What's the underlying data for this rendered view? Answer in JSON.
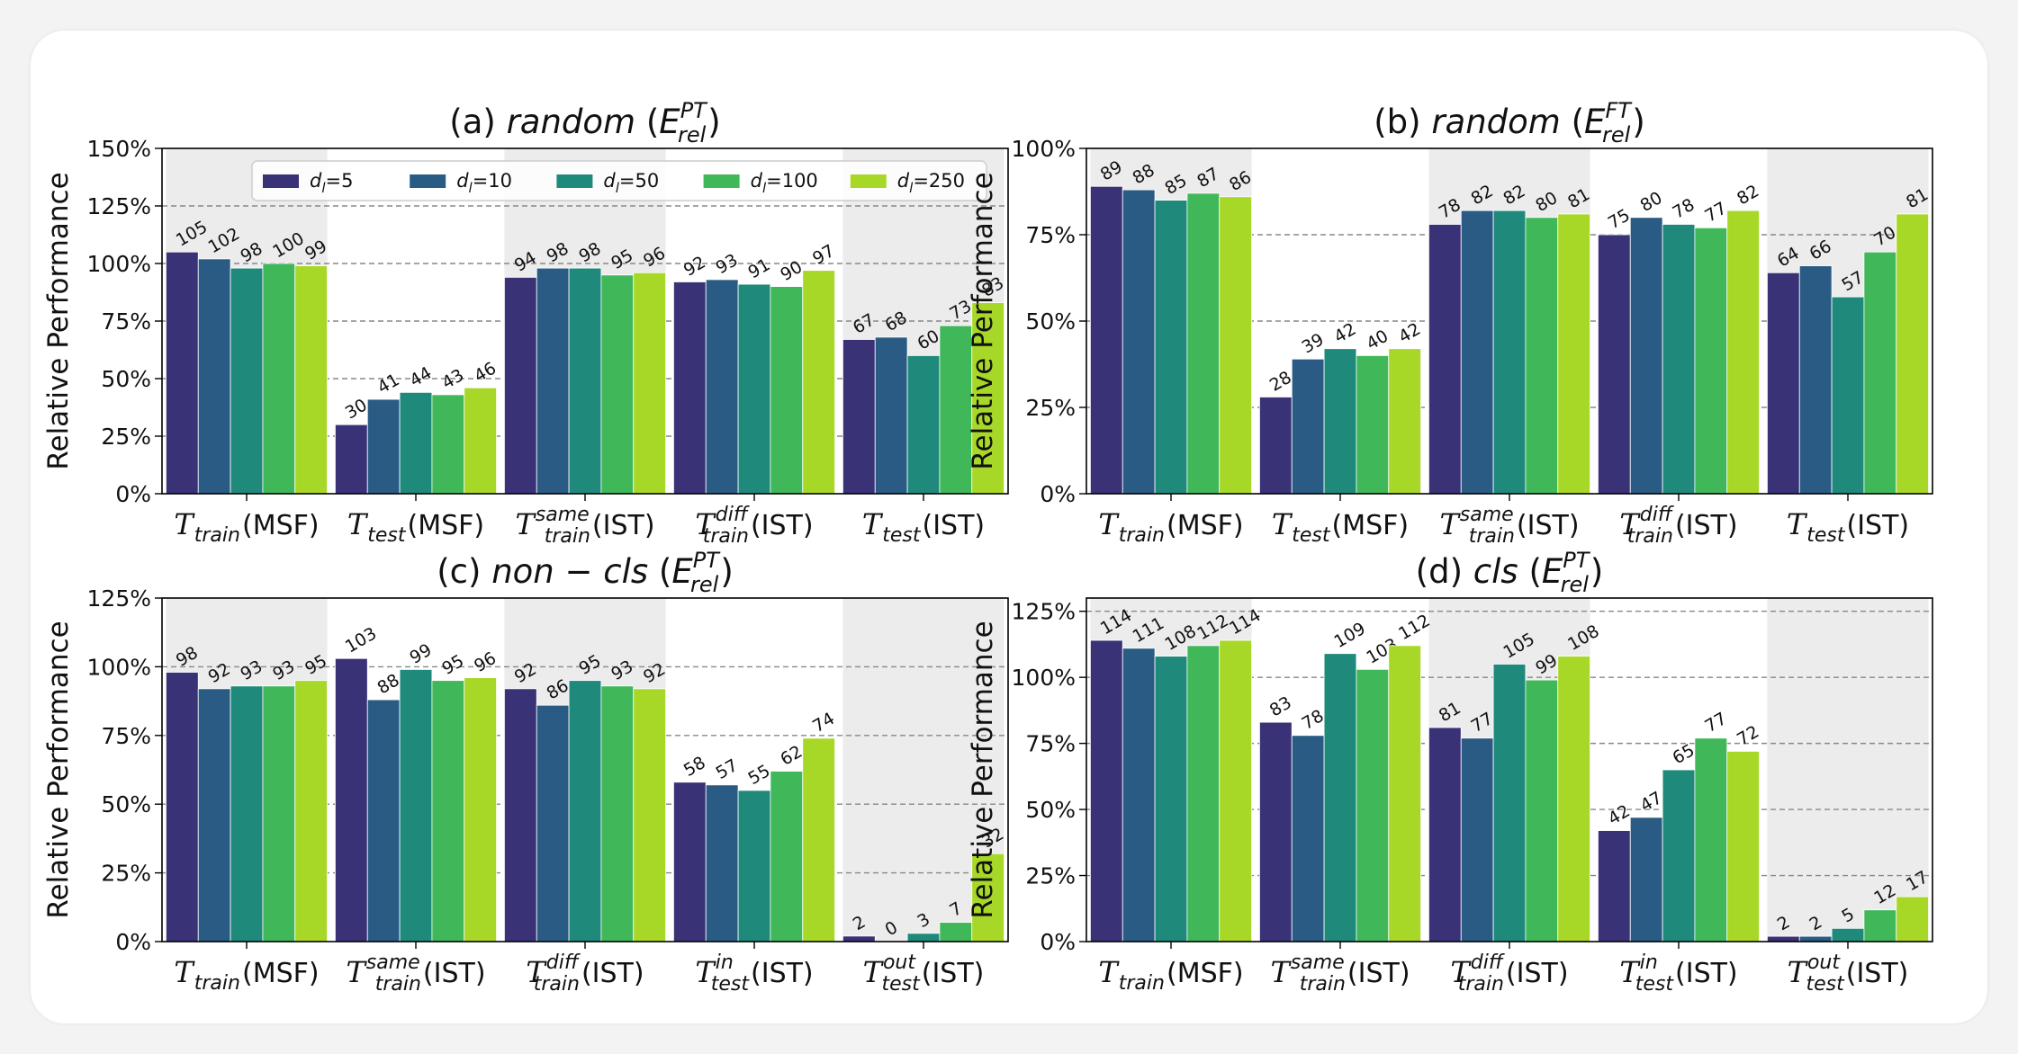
{
  "series_names": [
    "d_l=5",
    "d_l=10",
    "d_l=50",
    "d_l=100",
    "d_l=250"
  ],
  "legend_labels": [
    {
      "base": "d",
      "sub": "l",
      "rest": "=5"
    },
    {
      "base": "d",
      "sub": "l",
      "rest": "=10"
    },
    {
      "base": "d",
      "sub": "l",
      "rest": "=50"
    },
    {
      "base": "d",
      "sub": "l",
      "rest": "=100"
    },
    {
      "base": "d",
      "sub": "l",
      "rest": "=250"
    }
  ],
  "series_colors": [
    "#3a3277",
    "#2a5b84",
    "#1f8a7c",
    "#40b85a",
    "#a8d827"
  ],
  "ylabel": "Relative Performance",
  "chart_data": [
    {
      "type": "bar",
      "panel": "a",
      "title_parts": [
        {
          "t": "(a) ",
          "st": "normal"
        },
        {
          "t": "random",
          "st": "italic"
        },
        {
          "t": " (",
          "st": "normal"
        },
        {
          "t": "E",
          "st": "italic"
        },
        {
          "t": "PT",
          "st": "italic",
          "sup": true
        },
        {
          "t": "rel",
          "st": "italic",
          "sub": true
        },
        {
          "t": ")",
          "st": "normal"
        }
      ],
      "categories": [
        {
          "sym": "T",
          "sub": "train",
          "sup": "",
          "tail": "(MSF)"
        },
        {
          "sym": "T",
          "sub": "test",
          "sup": "",
          "tail": "(MSF)"
        },
        {
          "sym": "T",
          "sub": "train",
          "sup": "same",
          "tail": "(IST)"
        },
        {
          "sym": "T",
          "sub": "train",
          "sup": "diff",
          "tail": "(IST)"
        },
        {
          "sym": "T",
          "sub": "test",
          "sup": "",
          "tail": "(IST)"
        }
      ],
      "ylim": [
        0,
        150
      ],
      "yticks": [
        0,
        25,
        50,
        75,
        100,
        125,
        150
      ],
      "ytick_labels": [
        "0%",
        "25%",
        "50%",
        "75%",
        "100%",
        "125%",
        "150%"
      ],
      "legend": "top",
      "grid": "dashed horizontal",
      "series": [
        {
          "name": "d_l=5",
          "values": [
            105,
            30,
            94,
            92,
            67
          ],
          "labels": [
            "105",
            "30",
            "94",
            "92",
            "67"
          ]
        },
        {
          "name": "d_l=10",
          "values": [
            102,
            41,
            98,
            93,
            68
          ],
          "labels": [
            "102",
            "41",
            "98",
            "93",
            "68"
          ]
        },
        {
          "name": "d_l=50",
          "values": [
            98,
            44,
            98,
            91,
            60
          ],
          "labels": [
            "98",
            "44",
            "98",
            "91",
            "60"
          ]
        },
        {
          "name": "d_l=100",
          "values": [
            100,
            43,
            95,
            90,
            73
          ],
          "labels": [
            "100",
            "43",
            "95",
            "90",
            "73"
          ]
        },
        {
          "name": "d_l=250",
          "values": [
            99,
            46,
            96,
            97,
            83
          ],
          "labels": [
            "99",
            "46",
            "96",
            "97",
            "83"
          ]
        }
      ]
    },
    {
      "type": "bar",
      "panel": "b",
      "title_parts": [
        {
          "t": "(b) ",
          "st": "normal"
        },
        {
          "t": "random",
          "st": "italic"
        },
        {
          "t": " (",
          "st": "normal"
        },
        {
          "t": "E",
          "st": "italic"
        },
        {
          "t": "FT",
          "st": "italic",
          "sup": true
        },
        {
          "t": "rel",
          "st": "italic",
          "sub": true
        },
        {
          "t": ")",
          "st": "normal"
        }
      ],
      "categories": [
        {
          "sym": "T",
          "sub": "train",
          "sup": "",
          "tail": "(MSF)"
        },
        {
          "sym": "T",
          "sub": "test",
          "sup": "",
          "tail": "(MSF)"
        },
        {
          "sym": "T",
          "sub": "train",
          "sup": "same",
          "tail": "(IST)"
        },
        {
          "sym": "T",
          "sub": "train",
          "sup": "diff",
          "tail": "(IST)"
        },
        {
          "sym": "T",
          "sub": "test",
          "sup": "",
          "tail": "(IST)"
        }
      ],
      "ylim": [
        0,
        100
      ],
      "yticks": [
        0,
        25,
        50,
        75,
        100
      ],
      "ytick_labels": [
        "0%",
        "25%",
        "50%",
        "75%",
        "100%"
      ],
      "grid": "dashed horizontal",
      "series": [
        {
          "name": "d_l=5",
          "values": [
            89,
            28,
            78,
            75,
            64
          ],
          "labels": [
            "89",
            "28",
            "78",
            "75",
            "64"
          ]
        },
        {
          "name": "d_l=10",
          "values": [
            88,
            39,
            82,
            80,
            66
          ],
          "labels": [
            "88",
            "39",
            "82",
            "80",
            "66"
          ]
        },
        {
          "name": "d_l=50",
          "values": [
            85,
            42,
            82,
            78,
            57
          ],
          "labels": [
            "85",
            "42",
            "82",
            "78",
            "57"
          ]
        },
        {
          "name": "d_l=100",
          "values": [
            87,
            40,
            80,
            77,
            70
          ],
          "labels": [
            "87",
            "40",
            "80",
            "77",
            "70"
          ]
        },
        {
          "name": "d_l=250",
          "values": [
            86,
            42,
            81,
            82,
            81
          ],
          "labels": [
            "86",
            "42",
            "81",
            "82",
            "81"
          ]
        }
      ]
    },
    {
      "type": "bar",
      "panel": "c",
      "title_parts": [
        {
          "t": "(c) ",
          "st": "normal"
        },
        {
          "t": "non − cls",
          "st": "italic"
        },
        {
          "t": "  (",
          "st": "normal"
        },
        {
          "t": "E",
          "st": "italic"
        },
        {
          "t": "PT",
          "st": "italic",
          "sup": true
        },
        {
          "t": "rel",
          "st": "italic",
          "sub": true
        },
        {
          "t": ")",
          "st": "normal"
        }
      ],
      "categories": [
        {
          "sym": "T",
          "sub": "train",
          "sup": "",
          "tail": "(MSF)"
        },
        {
          "sym": "T",
          "sub": "train",
          "sup": "same",
          "tail": "(IST)"
        },
        {
          "sym": "T",
          "sub": "train",
          "sup": "diff",
          "tail": "(IST)"
        },
        {
          "sym": "T",
          "sub": "test",
          "sup": "in",
          "tail": "(IST)"
        },
        {
          "sym": "T",
          "sub": "test",
          "sup": "out",
          "tail": "(IST)"
        }
      ],
      "ylim": [
        0,
        125
      ],
      "yticks": [
        0,
        25,
        50,
        75,
        100,
        125
      ],
      "ytick_labels": [
        "0%",
        "25%",
        "50%",
        "75%",
        "100%",
        "125%"
      ],
      "grid": "dashed horizontal",
      "series": [
        {
          "name": "d_l=5",
          "values": [
            98,
            103,
            92,
            58,
            2
          ],
          "labels": [
            "98",
            "103",
            "92",
            "58",
            "2"
          ]
        },
        {
          "name": "d_l=10",
          "values": [
            92,
            88,
            86,
            57,
            0
          ],
          "labels": [
            "92",
            "88",
            "86",
            "57",
            "0"
          ]
        },
        {
          "name": "d_l=50",
          "values": [
            93,
            99,
            95,
            55,
            3
          ],
          "labels": [
            "93",
            "99",
            "95",
            "55",
            "3"
          ]
        },
        {
          "name": "d_l=100",
          "values": [
            93,
            95,
            93,
            62,
            7
          ],
          "labels": [
            "93",
            "95",
            "93",
            "62",
            "7"
          ]
        },
        {
          "name": "d_l=250",
          "values": [
            95,
            96,
            92,
            74,
            32
          ],
          "labels": [
            "95",
            "96",
            "92",
            "74",
            "32"
          ]
        }
      ]
    },
    {
      "type": "bar",
      "panel": "d",
      "title_parts": [
        {
          "t": "(d) ",
          "st": "normal"
        },
        {
          "t": "cls",
          "st": "italic"
        },
        {
          "t": " (",
          "st": "normal"
        },
        {
          "t": "E",
          "st": "italic"
        },
        {
          "t": "PT",
          "st": "italic",
          "sup": true
        },
        {
          "t": "rel",
          "st": "italic",
          "sub": true
        },
        {
          "t": ")",
          "st": "normal"
        }
      ],
      "categories": [
        {
          "sym": "T",
          "sub": "train",
          "sup": "",
          "tail": "(MSF)"
        },
        {
          "sym": "T",
          "sub": "train",
          "sup": "same",
          "tail": "(IST)"
        },
        {
          "sym": "T",
          "sub": "train",
          "sup": "diff",
          "tail": "(IST)"
        },
        {
          "sym": "T",
          "sub": "test",
          "sup": "in",
          "tail": "(IST)"
        },
        {
          "sym": "T",
          "sub": "test",
          "sup": "out",
          "tail": "(IST)"
        }
      ],
      "ylim": [
        0,
        130
      ],
      "yticks": [
        0,
        25,
        50,
        75,
        100,
        125
      ],
      "ytick_labels": [
        "0%",
        "25%",
        "50%",
        "75%",
        "100%",
        "125%"
      ],
      "grid": "dashed horizontal",
      "series": [
        {
          "name": "d_l=5",
          "values": [
            114,
            83,
            81,
            42,
            2
          ],
          "labels": [
            "114",
            "83",
            "81",
            "42",
            "2"
          ]
        },
        {
          "name": "d_l=10",
          "values": [
            111,
            78,
            77,
            47,
            2
          ],
          "labels": [
            "111",
            "78",
            "77",
            "47",
            "2"
          ]
        },
        {
          "name": "d_l=50",
          "values": [
            108,
            109,
            105,
            65,
            5
          ],
          "labels": [
            "108",
            "109",
            "105",
            "65",
            "5"
          ]
        },
        {
          "name": "d_l=100",
          "values": [
            112,
            103,
            99,
            77,
            12
          ],
          "labels": [
            "112",
            "103",
            "99",
            "77",
            "12"
          ]
        },
        {
          "name": "d_l=250",
          "values": [
            114,
            112,
            108,
            72,
            17
          ],
          "labels": [
            "114",
            "112",
            "108",
            "72",
            "17"
          ]
        }
      ]
    }
  ]
}
